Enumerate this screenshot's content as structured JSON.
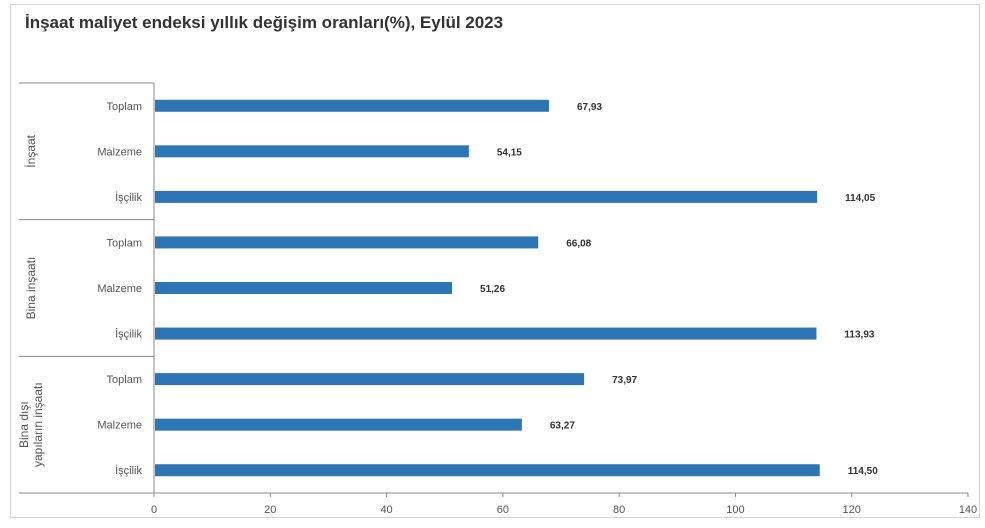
{
  "title": "İnşaat maliyet endeksi yıllık değişim oranları(%), Eylül 2023",
  "colors": {
    "bar": "#2e75b6",
    "axis": "#888888",
    "text": "#555555"
  },
  "chart_data": {
    "type": "bar",
    "orientation": "horizontal",
    "title": "İnşaat maliyet endeksi yıllık değişim oranları(%), Eylül 2023",
    "xlabel": "",
    "ylabel": "",
    "xlim": [
      0,
      140
    ],
    "x_ticks": [
      "0",
      "20",
      "40",
      "60",
      "80",
      "100",
      "120",
      "140"
    ],
    "grid": false,
    "groups": [
      {
        "name": [
          "İnşaat"
        ],
        "items": [
          {
            "category": "Toplam",
            "value": 67.93,
            "label": "67,93"
          },
          {
            "category": "Malzeme",
            "value": 54.15,
            "label": "54,15"
          },
          {
            "category": "İşçilik",
            "value": 114.05,
            "label": "114,05"
          }
        ]
      },
      {
        "name": [
          "Bina inşaatı"
        ],
        "items": [
          {
            "category": "Toplam",
            "value": 66.08,
            "label": "66,08"
          },
          {
            "category": "Malzeme",
            "value": 51.26,
            "label": "51,26"
          },
          {
            "category": "İşçilik",
            "value": 113.93,
            "label": "113,93"
          }
        ]
      },
      {
        "name": [
          "Bina dışı",
          "yapıların inşaatı"
        ],
        "items": [
          {
            "category": "Toplam",
            "value": 73.97,
            "label": "73,97"
          },
          {
            "category": "Malzeme",
            "value": 63.27,
            "label": "63,27"
          },
          {
            "category": "İşçilik",
            "value": 114.5,
            "label": "114,50"
          }
        ]
      }
    ]
  }
}
